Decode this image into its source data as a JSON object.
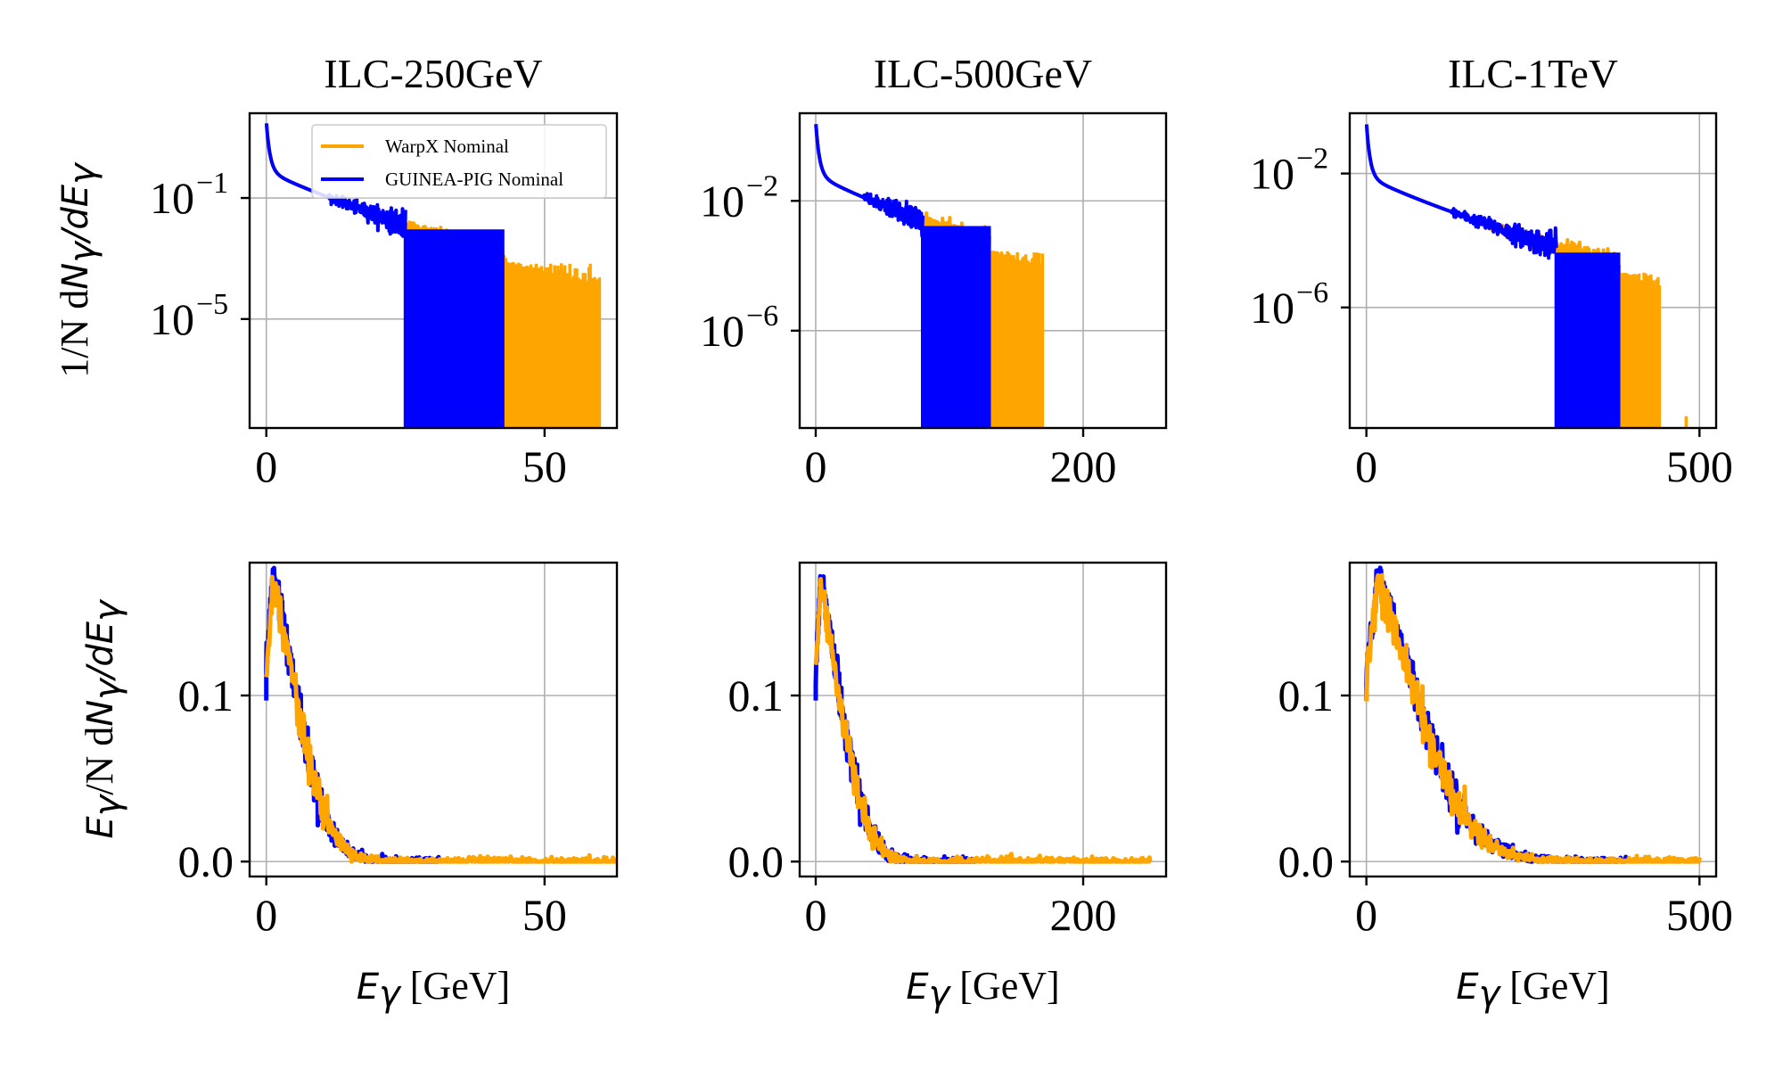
{
  "chart_data": [
    {
      "type": "line",
      "title": "ILC-250GeV",
      "row": 0,
      "col": 0,
      "yscale": "log",
      "xlim": [
        -3,
        63
      ],
      "ylim_exp": [
        -8.6,
        1.8
      ],
      "xticks": [
        0,
        50
      ],
      "yticks": [
        -1,
        -5
      ],
      "xlabel": "",
      "ylabel": "1/N dN_γ/dE_γ",
      "legend": {
        "placement": "upper-right",
        "entries": [
          "WarpX Nominal",
          "GUINEA-PIG Nominal"
        ]
      },
      "series": [
        {
          "name": "WarpX Nominal",
          "color": "#ffa500",
          "Emax": 60,
          "cutoff": 43,
          "noise_until": 55
        },
        {
          "name": "GUINEA-PIG Nominal",
          "color": "#0000ff",
          "Emax": 42.5,
          "cutoff": 25
        }
      ]
    },
    {
      "type": "line",
      "title": "ILC-500GeV",
      "row": 0,
      "col": 1,
      "yscale": "log",
      "xlim": [
        -12,
        262
      ],
      "ylim_exp": [
        -9.0,
        0.7
      ],
      "xticks": [
        0,
        200
      ],
      "yticks": [
        -2,
        -6
      ],
      "xlabel": "",
      "ylabel": "",
      "series": [
        {
          "name": "WarpX Nominal",
          "color": "#ffa500",
          "Emax": 170,
          "cutoff": 130
        },
        {
          "name": "GUINEA-PIG Nominal",
          "color": "#0000ff",
          "Emax": 130,
          "cutoff": 80
        }
      ]
    },
    {
      "type": "line",
      "title": "ILC-1TeV",
      "row": 0,
      "col": 2,
      "yscale": "log",
      "xlim": [
        -25,
        525
      ],
      "ylim_exp": [
        -9.6,
        -0.2
      ],
      "xticks": [
        0,
        500
      ],
      "yticks": [
        -2,
        -6
      ],
      "xlabel": "",
      "ylabel": "",
      "series": [
        {
          "name": "WarpX Nominal",
          "color": "#ffa500",
          "Emax": 440,
          "cutoff": 380,
          "outlier": 480
        },
        {
          "name": "GUINEA-PIG Nominal",
          "color": "#0000ff",
          "Emax": 380,
          "cutoff": 285
        }
      ]
    },
    {
      "type": "line",
      "title": "",
      "row": 1,
      "col": 0,
      "yscale": "linear",
      "xlim": [
        -3,
        63
      ],
      "ylim": [
        -0.009,
        0.18
      ],
      "xticks": [
        0,
        50
      ],
      "yticks": [
        0.0,
        0.1
      ],
      "xlabel": "E_γ [GeV]",
      "ylabel": "E_γ/N dN_γ/dE_γ",
      "series": [
        {
          "name": "WarpX Nominal",
          "color": "#ffa500",
          "peakE": 1.2,
          "peak": 0.17,
          "Emax": 63
        },
        {
          "name": "GUINEA-PIG Nominal",
          "color": "#0000ff",
          "peakE": 1.2,
          "peak": 0.173,
          "Emax": 31
        }
      ]
    },
    {
      "type": "line",
      "title": "",
      "row": 1,
      "col": 1,
      "yscale": "linear",
      "xlim": [
        -12,
        262
      ],
      "ylim": [
        -0.009,
        0.18
      ],
      "xticks": [
        0,
        200
      ],
      "yticks": [
        0.0,
        0.1
      ],
      "xlabel": "E_γ [GeV]",
      "ylabel": "",
      "series": [
        {
          "name": "WarpX Nominal",
          "color": "#ffa500",
          "peakE": 3.5,
          "peak": 0.167,
          "Emax": 250
        },
        {
          "name": "GUINEA-PIG Nominal",
          "color": "#0000ff",
          "peakE": 3.5,
          "peak": 0.17,
          "Emax": 120
        }
      ]
    },
    {
      "type": "line",
      "title": "",
      "row": 1,
      "col": 2,
      "yscale": "linear",
      "xlim": [
        -25,
        525
      ],
      "ylim": [
        -0.009,
        0.18
      ],
      "xticks": [
        0,
        500
      ],
      "yticks": [
        0.0,
        0.1
      ],
      "xlabel": "E_γ [GeV]",
      "ylabel": "",
      "series": [
        {
          "name": "WarpX Nominal",
          "color": "#ffa500",
          "peakE": 17,
          "peak": 0.168,
          "Emax": 500
        },
        {
          "name": "GUINEA-PIG Nominal",
          "color": "#0000ff",
          "peakE": 17,
          "peak": 0.173,
          "Emax": 390
        }
      ]
    }
  ]
}
